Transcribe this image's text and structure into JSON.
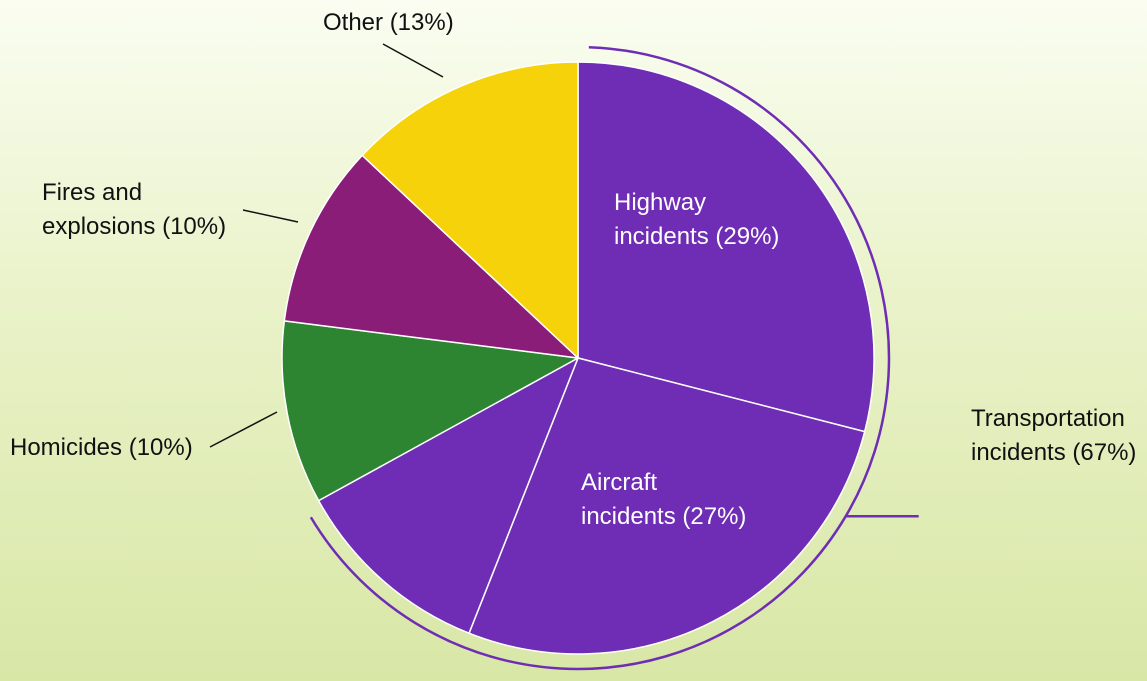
{
  "chart_data": {
    "type": "pie",
    "title": "",
    "legend": "none",
    "start_angle_deg": 0,
    "direction": "clockwise",
    "slices": [
      {
        "name": "Highway incidents",
        "value": 29,
        "color": "#6f2db5",
        "label_lines": [
          "Highway",
          "incidents (29%)"
        ],
        "label_position": "inside"
      },
      {
        "name": "Aircraft incidents",
        "value": 27,
        "color": "#6f2db5",
        "label_lines": [
          "Aircraft",
          "incidents (27%)"
        ],
        "label_position": "inside"
      },
      {
        "name": "Other transportation",
        "value": 11,
        "color": "#6f2db5",
        "label_lines": [],
        "label_position": "none"
      },
      {
        "name": "Homicides",
        "value": 10,
        "color": "#2e8531",
        "label_lines": [
          "Homicides (10%)"
        ],
        "label_position": "outside"
      },
      {
        "name": "Fires and explosions",
        "value": 10,
        "color": "#8a1d78",
        "label_lines": [
          "Fires and",
          "explosions (10%)"
        ],
        "label_position": "outside"
      },
      {
        "name": "Other",
        "value": 13,
        "color": "#f5d20a",
        "label_lines": [
          "Other (13%)"
        ],
        "label_position": "outside"
      }
    ],
    "group_bracket": {
      "label_lines": [
        "Transportation",
        "incidents (67%)"
      ],
      "value": 67,
      "covers_slices": [
        0,
        1,
        2
      ],
      "color": "#6f2db5"
    }
  }
}
